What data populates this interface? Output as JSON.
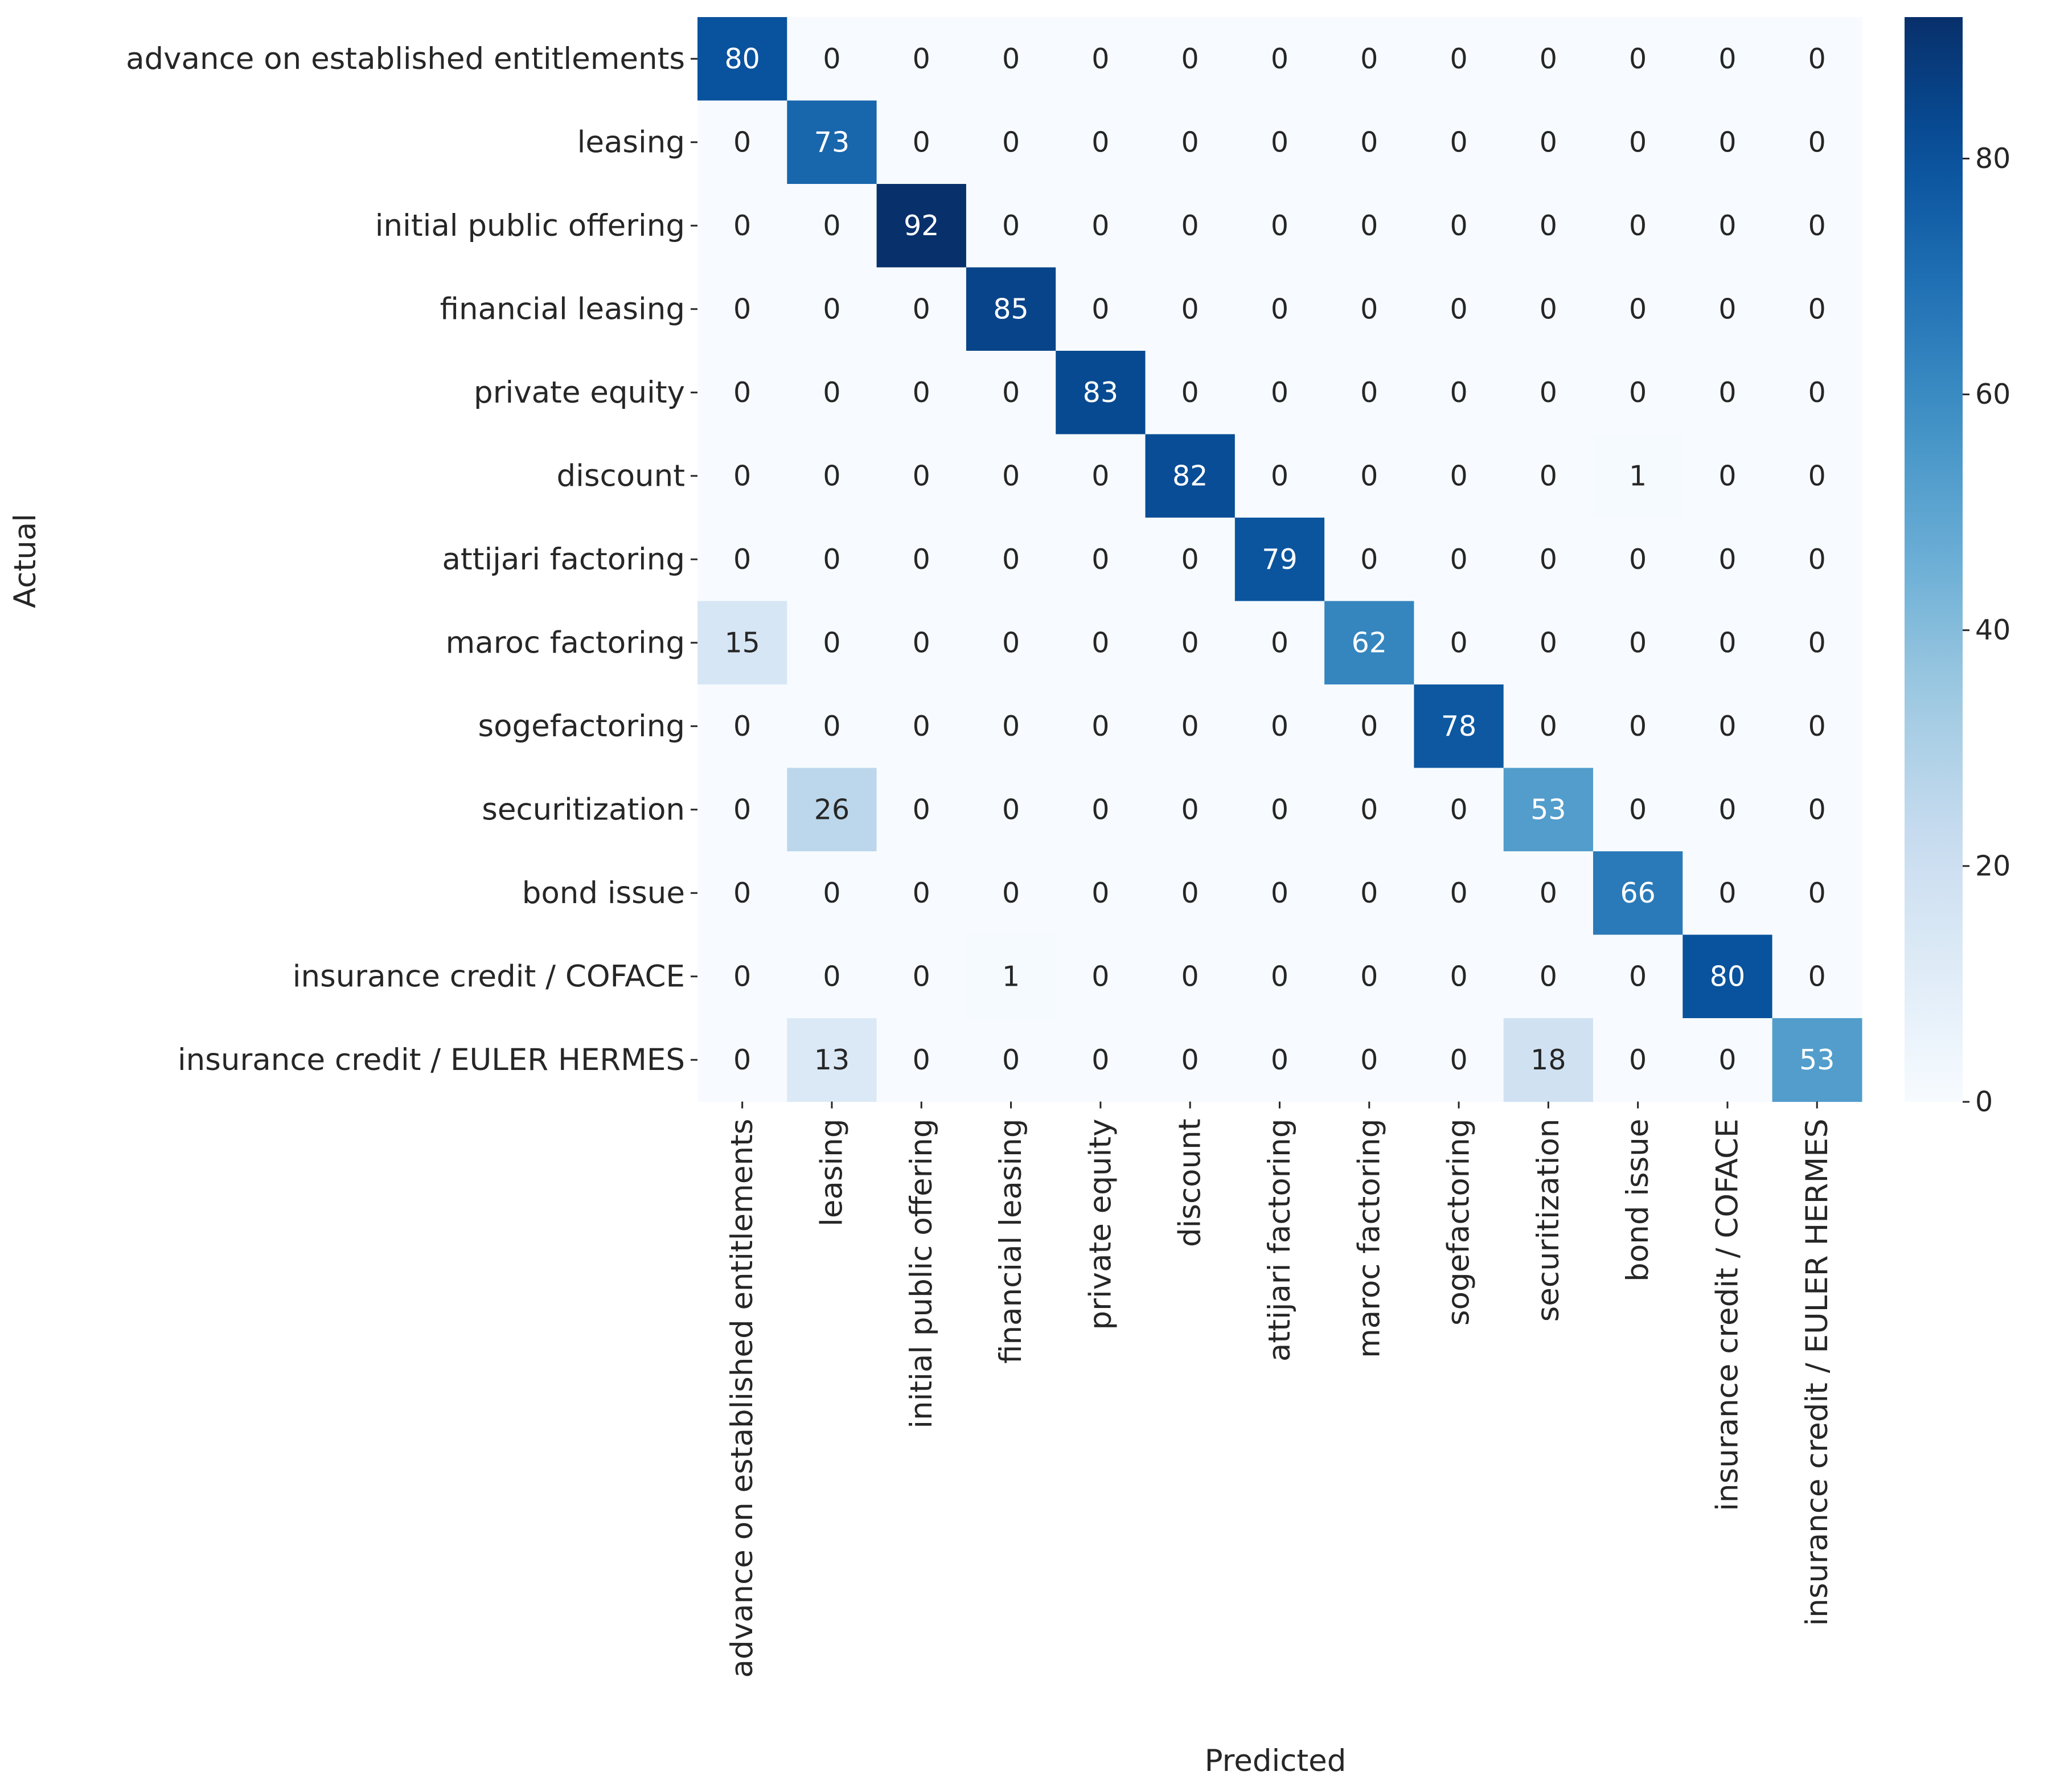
{
  "chart_data": {
    "type": "heatmap",
    "title": "",
    "xlabel": "Predicted",
    "ylabel": "Actual",
    "categories": [
      "advance on established entitlements",
      "leasing",
      "initial public offering",
      "financial leasing",
      "private equity",
      "discount",
      "attijari factoring",
      "maroc factoring",
      "sogefactoring",
      "securitization",
      "bond issue",
      "insurance credit / COFACE",
      "insurance credit / EULER HERMES"
    ],
    "values": [
      [
        80,
        0,
        0,
        0,
        0,
        0,
        0,
        0,
        0,
        0,
        0,
        0,
        0
      ],
      [
        0,
        73,
        0,
        0,
        0,
        0,
        0,
        0,
        0,
        0,
        0,
        0,
        0
      ],
      [
        0,
        0,
        92,
        0,
        0,
        0,
        0,
        0,
        0,
        0,
        0,
        0,
        0
      ],
      [
        0,
        0,
        0,
        85,
        0,
        0,
        0,
        0,
        0,
        0,
        0,
        0,
        0
      ],
      [
        0,
        0,
        0,
        0,
        83,
        0,
        0,
        0,
        0,
        0,
        0,
        0,
        0
      ],
      [
        0,
        0,
        0,
        0,
        0,
        82,
        0,
        0,
        0,
        0,
        1,
        0,
        0
      ],
      [
        0,
        0,
        0,
        0,
        0,
        0,
        79,
        0,
        0,
        0,
        0,
        0,
        0
      ],
      [
        15,
        0,
        0,
        0,
        0,
        0,
        0,
        62,
        0,
        0,
        0,
        0,
        0
      ],
      [
        0,
        0,
        0,
        0,
        0,
        0,
        0,
        0,
        78,
        0,
        0,
        0,
        0
      ],
      [
        0,
        26,
        0,
        0,
        0,
        0,
        0,
        0,
        0,
        53,
        0,
        0,
        0
      ],
      [
        0,
        0,
        0,
        0,
        0,
        0,
        0,
        0,
        0,
        0,
        66,
        0,
        0
      ],
      [
        0,
        0,
        0,
        1,
        0,
        0,
        0,
        0,
        0,
        0,
        0,
        80,
        0
      ],
      [
        0,
        13,
        0,
        0,
        0,
        0,
        0,
        0,
        0,
        18,
        0,
        0,
        53
      ]
    ],
    "colormap": "Blues",
    "vmin": 0,
    "vmax": 92,
    "colorbar_ticks": [
      0,
      20,
      40,
      60,
      80
    ],
    "colorbar_position": "right",
    "grid": false
  }
}
